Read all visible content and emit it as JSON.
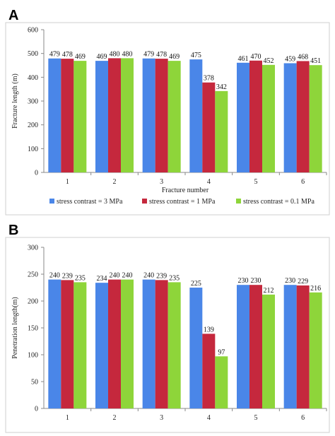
{
  "panel_labels": [
    "A",
    "B"
  ],
  "chart_data": [
    {
      "type": "bar",
      "panel": "A",
      "categories": [
        "1",
        "2",
        "3",
        "4",
        "5",
        "6"
      ],
      "series": [
        {
          "name": "stress contrast = 3 MPa",
          "values": [
            479,
            469,
            479,
            475,
            461,
            459
          ]
        },
        {
          "name": "stress contrast = 1 MPa",
          "values": [
            478,
            480,
            478,
            378,
            470,
            468
          ]
        },
        {
          "name": "stress contrast = 0.1 MPa",
          "values": [
            469,
            480,
            469,
            342,
            452,
            451
          ]
        }
      ],
      "xlabel": "Fracture number",
      "ylabel": "Fracture length (m)",
      "ylim": [
        0,
        600
      ],
      "yticks": [
        0,
        100,
        200,
        300,
        400,
        500,
        600
      ],
      "grid": false,
      "legend": "bottom"
    },
    {
      "type": "bar",
      "panel": "B",
      "categories": [
        "1",
        "2",
        "3",
        "4",
        "5",
        "6"
      ],
      "series": [
        {
          "name": "stress contrast = 3 MPa",
          "values": [
            240,
            234,
            240,
            225,
            230,
            230
          ]
        },
        {
          "name": "stress contrast = 1 MPa",
          "values": [
            239,
            240,
            239,
            139,
            230,
            229
          ]
        },
        {
          "name": "stress contrast = 0.1 MPa",
          "values": [
            235,
            240,
            235,
            97,
            212,
            216
          ]
        }
      ],
      "xlabel": "",
      "ylabel": "Penetration length(m)",
      "ylim": [
        0,
        300
      ],
      "yticks": [
        0,
        50,
        100,
        150,
        200,
        250,
        300
      ],
      "grid": false,
      "legend": "none"
    }
  ],
  "colors": {
    "series": [
      "#4a86e8",
      "#c5283d",
      "#8ed53a"
    ],
    "axis": "#888888",
    "panel_bg": "#ffffff"
  }
}
